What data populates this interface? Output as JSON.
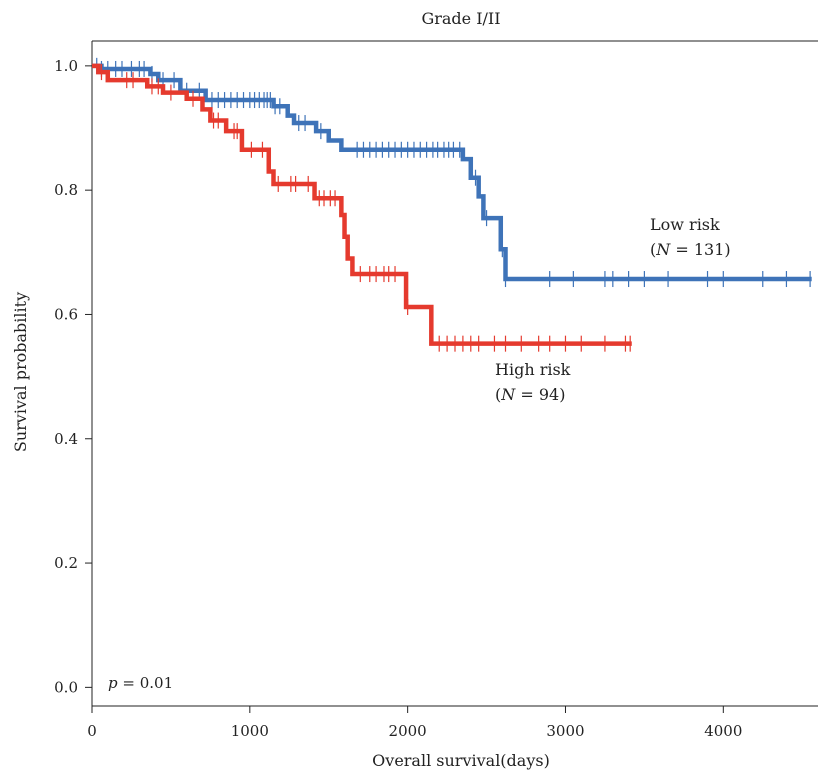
{
  "chart_data": {
    "type": "line",
    "title": "Grade I/II",
    "xlabel": "Overall survival(days)",
    "ylabel": "Survival probability",
    "xlim": [
      0,
      4600
    ],
    "ylim": [
      -0.03,
      1.04
    ],
    "xticks": [
      0,
      1000,
      2000,
      3000,
      4000
    ],
    "xtick_labels": [
      "0",
      "1000",
      "2000",
      "3000",
      "4000"
    ],
    "yticks": [
      0.0,
      0.2,
      0.4,
      0.6,
      0.8,
      1.0
    ],
    "ytick_labels": [
      "0.0",
      "0.2",
      "0.4",
      "0.6",
      "0.8",
      "1.0"
    ],
    "grid": false,
    "pvalue_text": {
      "prefix": "p",
      "rest": " = 0.01"
    },
    "series": [
      {
        "name": "Low risk",
        "annotation": [
          "Low risk",
          "(N = 131)"
        ],
        "color": "#3e73b8",
        "step_x": [
          0,
          60,
          370,
          420,
          560,
          720,
          1150,
          1240,
          1280,
          1420,
          1500,
          1580,
          1620,
          2350,
          2400,
          2450,
          2480,
          2520,
          2590,
          2620,
          4560
        ],
        "step_y": [
          1.0,
          0.995,
          0.987,
          0.977,
          0.96,
          0.945,
          0.935,
          0.92,
          0.908,
          0.895,
          0.88,
          0.865,
          0.865,
          0.85,
          0.82,
          0.79,
          0.755,
          0.755,
          0.705,
          0.657,
          0.657
        ],
        "censor_x": [
          30,
          60,
          100,
          150,
          190,
          250,
          300,
          330,
          380,
          450,
          520,
          600,
          680,
          760,
          800,
          840,
          880,
          920,
          960,
          1000,
          1030,
          1060,
          1090,
          1110,
          1130,
          1160,
          1190,
          1310,
          1350,
          1450,
          1680,
          1720,
          1760,
          1800,
          1840,
          1880,
          1920,
          1960,
          2000,
          2040,
          2080,
          2120,
          2160,
          2190,
          2230,
          2260,
          2290,
          2330,
          2430,
          2500,
          2600,
          2620,
          2900,
          3050,
          3250,
          3300,
          3400,
          3500,
          3650,
          3900,
          4000,
          4250,
          4400,
          4550
        ]
      },
      {
        "name": "High risk",
        "annotation": [
          "High risk",
          "(N = 94)"
        ],
        "color": "#e53a2e",
        "step_x": [
          0,
          40,
          100,
          350,
          450,
          600,
          700,
          750,
          850,
          950,
          1120,
          1150,
          1220,
          1410,
          1580,
          1600,
          1620,
          1650,
          1990,
          2150,
          3420
        ],
        "step_y": [
          1.0,
          0.99,
          0.977,
          0.967,
          0.957,
          0.947,
          0.93,
          0.912,
          0.895,
          0.865,
          0.83,
          0.81,
          0.81,
          0.787,
          0.76,
          0.725,
          0.69,
          0.665,
          0.612,
          0.553,
          0.553
        ],
        "censor_x": [
          60,
          220,
          260,
          380,
          420,
          500,
          640,
          770,
          800,
          900,
          920,
          1010,
          1080,
          1180,
          1260,
          1290,
          1370,
          1440,
          1470,
          1510,
          1540,
          1700,
          1760,
          1800,
          1850,
          1880,
          1920,
          2000,
          2200,
          2250,
          2300,
          2350,
          2400,
          2450,
          2550,
          2620,
          2720,
          2830,
          2900,
          3000,
          3100,
          3250,
          3380,
          3410
        ]
      }
    ]
  }
}
